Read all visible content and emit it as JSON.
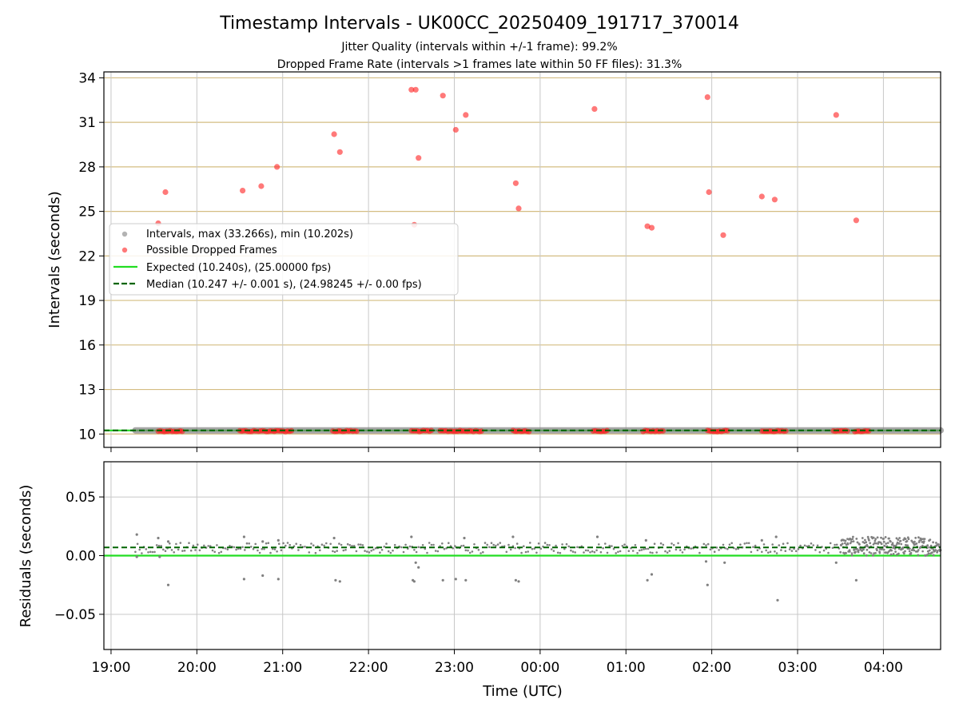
{
  "figure": {
    "title": "Timestamp Intervals - UK00CC_20250409_191717_370014",
    "subtitle_1": "Jitter Quality (intervals within +/-1 frame): 99.2%",
    "subtitle_2": "Dropped Frame Rate (intervals >1 frames late within 50 FF files): 31.3%",
    "xlabel": "Time (UTC)"
  },
  "colors": {
    "interval_points": "#808080",
    "dropped_points": "#ff2020",
    "expected_line": "#22dd22",
    "median_line": "#006400",
    "top_grid": "#d4bd82",
    "bottom_grid": "#c8c8c8"
  },
  "chart_data": [
    {
      "type": "scatter",
      "panel": "intervals",
      "ylabel": "Intervals (seconds)",
      "ylim": [
        9.1,
        34.4
      ],
      "yticks": [
        10,
        13,
        16,
        19,
        22,
        25,
        28,
        31,
        34
      ],
      "xlim": [
        "18:55",
        "04:40"
      ],
      "xticks": [
        "19:00",
        "20:00",
        "21:00",
        "22:00",
        "23:00",
        "00:00",
        "01:00",
        "02:00",
        "03:00",
        "04:00"
      ],
      "grid": true,
      "legend_position": "center-left",
      "legend": [
        "Intervals, max (33.266s), min (10.202s)",
        "Possible Dropped Frames",
        "Expected (10.240s), (25.00000 fps)",
        "Median (10.247 +/- 0.001 s), (24.98245 +/- 0.00 fps)"
      ],
      "expected_interval": 10.24,
      "median_interval": 10.247,
      "intervals_band": {
        "x_start": "19:17",
        "x_end": "04:40",
        "y": 10.247
      },
      "dropped_frames_outliers": [
        {
          "x": "19:33",
          "y": 24.2
        },
        {
          "x": "19:38",
          "y": 26.3
        },
        {
          "x": "20:32",
          "y": 26.4
        },
        {
          "x": "20:45",
          "y": 26.7
        },
        {
          "x": "20:56",
          "y": 28.0
        },
        {
          "x": "21:36",
          "y": 30.2
        },
        {
          "x": "21:40",
          "y": 29.0
        },
        {
          "x": "22:30",
          "y": 33.2
        },
        {
          "x": "22:33",
          "y": 33.2
        },
        {
          "x": "22:32",
          "y": 24.1
        },
        {
          "x": "22:35",
          "y": 28.6
        },
        {
          "x": "22:52",
          "y": 32.8
        },
        {
          "x": "23:01",
          "y": 30.5
        },
        {
          "x": "23:08",
          "y": 31.5
        },
        {
          "x": "23:43",
          "y": 26.9
        },
        {
          "x": "23:45",
          "y": 25.2
        },
        {
          "x": "00:38",
          "y": 31.9
        },
        {
          "x": "01:15",
          "y": 24.0
        },
        {
          "x": "01:18",
          "y": 23.9
        },
        {
          "x": "01:57",
          "y": 32.7
        },
        {
          "x": "01:58",
          "y": 26.3
        },
        {
          "x": "02:08",
          "y": 23.4
        },
        {
          "x": "02:35",
          "y": 26.0
        },
        {
          "x": "02:44",
          "y": 25.8
        },
        {
          "x": "03:27",
          "y": 31.5
        },
        {
          "x": "03:41",
          "y": 24.4
        }
      ],
      "dropped_frames_baseline_clusters": [
        {
          "x_start": "19:33",
          "x_end": "19:50",
          "y": 10.2
        },
        {
          "x_start": "20:30",
          "x_end": "20:42",
          "y": 10.2
        },
        {
          "x_start": "20:43",
          "x_end": "20:55",
          "y": 10.2
        },
        {
          "x_start": "20:55",
          "x_end": "21:07",
          "y": 10.2
        },
        {
          "x_start": "21:35",
          "x_end": "21:52",
          "y": 10.2
        },
        {
          "x_start": "22:30",
          "x_end": "22:45",
          "y": 10.2
        },
        {
          "x_start": "22:50",
          "x_end": "23:05",
          "y": 10.2
        },
        {
          "x_start": "23:05",
          "x_end": "23:20",
          "y": 10.2
        },
        {
          "x_start": "23:41",
          "x_end": "23:53",
          "y": 10.2
        },
        {
          "x_start": "00:37",
          "x_end": "00:48",
          "y": 10.2
        },
        {
          "x_start": "01:12",
          "x_end": "01:27",
          "y": 10.2
        },
        {
          "x_start": "01:57",
          "x_end": "02:12",
          "y": 10.2
        },
        {
          "x_start": "02:35",
          "x_end": "02:52",
          "y": 10.2
        },
        {
          "x_start": "03:25",
          "x_end": "03:35",
          "y": 10.2
        },
        {
          "x_start": "03:40",
          "x_end": "03:50",
          "y": 10.2
        }
      ]
    },
    {
      "type": "scatter",
      "panel": "residuals",
      "ylabel": "Residuals (seconds)",
      "ylim": [
        -0.08,
        0.08
      ],
      "yticks": [
        0.05,
        0.0,
        -0.05
      ],
      "ytick_labels": [
        "0.05",
        "0.00",
        "−0.05"
      ],
      "xlim": [
        "18:55",
        "04:40"
      ],
      "xticks": [
        "19:00",
        "20:00",
        "21:00",
        "22:00",
        "23:00",
        "00:00",
        "01:00",
        "02:00",
        "03:00",
        "04:00"
      ],
      "grid": true,
      "expected_residual": 0.0,
      "median_residual": 0.007,
      "residual_band": {
        "x_start": "19:17",
        "x_end": "04:40",
        "y_min": 0.002,
        "y_max": 0.011
      },
      "dense_region": {
        "x_start": "03:30",
        "x_end": "04:40",
        "y_min": 0.0,
        "y_max": 0.016
      },
      "points": [
        {
          "x": "19:18",
          "y": 0.018
        },
        {
          "x": "19:18",
          "y": -0.001
        },
        {
          "x": "19:33",
          "y": 0.015
        },
        {
          "x": "19:34",
          "y": -0.001
        },
        {
          "x": "19:40",
          "y": 0.012
        },
        {
          "x": "19:40",
          "y": -0.025
        },
        {
          "x": "20:33",
          "y": 0.016
        },
        {
          "x": "20:33",
          "y": -0.02
        },
        {
          "x": "20:46",
          "y": 0.012
        },
        {
          "x": "20:46",
          "y": -0.017
        },
        {
          "x": "20:57",
          "y": 0.013
        },
        {
          "x": "20:57",
          "y": -0.02
        },
        {
          "x": "21:36",
          "y": 0.015
        },
        {
          "x": "21:37",
          "y": -0.021
        },
        {
          "x": "21:40",
          "y": -0.022
        },
        {
          "x": "22:30",
          "y": 0.016
        },
        {
          "x": "22:31",
          "y": -0.021
        },
        {
          "x": "22:32",
          "y": -0.022
        },
        {
          "x": "22:33",
          "y": -0.006
        },
        {
          "x": "22:35",
          "y": -0.01
        },
        {
          "x": "22:52",
          "y": -0.021
        },
        {
          "x": "23:01",
          "y": -0.02
        },
        {
          "x": "23:07",
          "y": 0.015
        },
        {
          "x": "23:08",
          "y": -0.021
        },
        {
          "x": "23:41",
          "y": 0.016
        },
        {
          "x": "23:43",
          "y": -0.021
        },
        {
          "x": "23:45",
          "y": -0.022
        },
        {
          "x": "00:40",
          "y": 0.016
        },
        {
          "x": "01:14",
          "y": 0.013
        },
        {
          "x": "01:15",
          "y": -0.021
        },
        {
          "x": "01:18",
          "y": -0.016
        },
        {
          "x": "01:56",
          "y": -0.005
        },
        {
          "x": "01:57",
          "y": -0.025
        },
        {
          "x": "02:09",
          "y": -0.006
        },
        {
          "x": "02:35",
          "y": 0.013
        },
        {
          "x": "02:45",
          "y": 0.016
        },
        {
          "x": "02:46",
          "y": -0.038
        },
        {
          "x": "03:27",
          "y": -0.006
        },
        {
          "x": "03:41",
          "y": -0.021
        }
      ]
    }
  ]
}
